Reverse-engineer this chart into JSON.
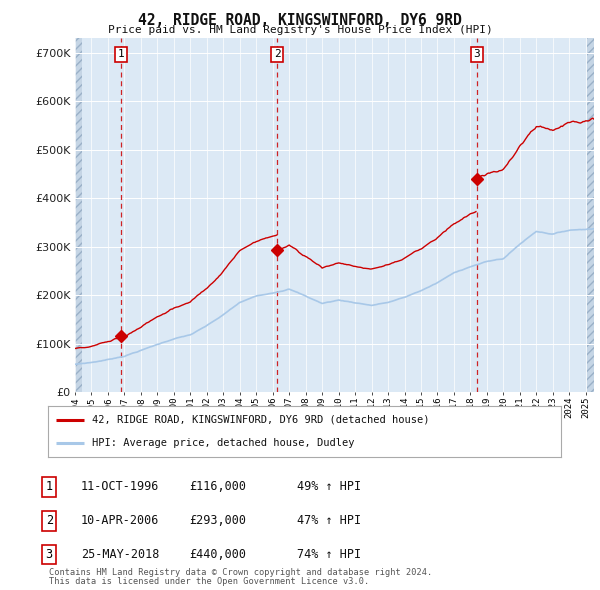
{
  "title": "42, RIDGE ROAD, KINGSWINFORD, DY6 9RD",
  "subtitle": "Price paid vs. HM Land Registry's House Price Index (HPI)",
  "ylim": [
    0,
    730000
  ],
  "yticks": [
    0,
    100000,
    200000,
    300000,
    400000,
    500000,
    600000,
    700000
  ],
  "ytick_labels": [
    "£0",
    "£100K",
    "£200K",
    "£300K",
    "£400K",
    "£500K",
    "£600K",
    "£700K"
  ],
  "hpi_color": "#a8c8e8",
  "price_color": "#cc0000",
  "vline_color": "#cc0000",
  "background_chart": "#dce9f5",
  "background_hatched": "#c5d5e5",
  "grid_color": "#ffffff",
  "sale_dates": [
    1996.79,
    2006.27,
    2018.39
  ],
  "sale_prices": [
    116000,
    293000,
    440000
  ],
  "sale_labels": [
    "1",
    "2",
    "3"
  ],
  "legend_entry1": "42, RIDGE ROAD, KINGSWINFORD, DY6 9RD (detached house)",
  "legend_entry2": "HPI: Average price, detached house, Dudley",
  "table_data": [
    [
      "1",
      "11-OCT-1996",
      "£116,000",
      "49% ↑ HPI"
    ],
    [
      "2",
      "10-APR-2006",
      "£293,000",
      "47% ↑ HPI"
    ],
    [
      "3",
      "25-MAY-2018",
      "£440,000",
      "74% ↑ HPI"
    ]
  ],
  "footer1": "Contains HM Land Registry data © Crown copyright and database right 2024.",
  "footer2": "This data is licensed under the Open Government Licence v3.0.",
  "xmin": 1994.0,
  "xmax": 2025.5
}
